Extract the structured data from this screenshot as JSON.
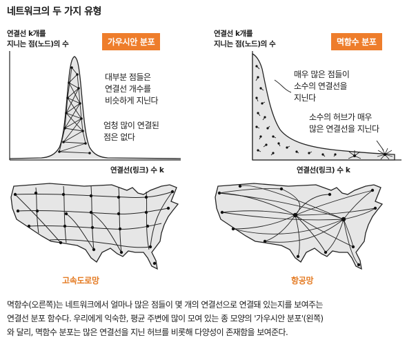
{
  "title": "네트워크의 두 가지 유형",
  "left_panel": {
    "y_axis_label_line1": "연결선 k개를",
    "y_axis_label_line2": "지니는 점(노드)의 수",
    "badge": "가우시안 분포",
    "x_axis_label": "연결선(링크) 수 k",
    "note1_line1": "대부분 점들은",
    "note1_line2": "연결선 개수를",
    "note1_line3": "비슷하게 지닌다",
    "note2_line1": "엄청 많이 연결된",
    "note2_line2": "점은 없다"
  },
  "right_panel": {
    "y_axis_label_line1": "연결선 k개를",
    "y_axis_label_line2": "지니는 점(노드)의 수",
    "badge": "멱함수 분포",
    "x_axis_label": "연결선(링크) 수 k",
    "note1_line1": "매우 많은 점들이",
    "note1_line2": "소수의 연결선을",
    "note1_line3": "지닌다",
    "note2_line1": "소수의 허브가 매우",
    "note2_line2": "많은 연결선을 지닌다"
  },
  "maps": {
    "left_label": "고속도로망",
    "right_label": "항공망"
  },
  "caption": {
    "line1": "멱함수(오른쪽)는 네트워크에서 얼마나 많은 점들이 몇 개의 연결선으로 연결돼 있는지를 보여주는",
    "line2": "연결선 분포 함수다. 우리에게 익숙한, 평균 주변에 많이 모여 있는 종 모양의 '가우시안 분포'(왼쪽)",
    "line3": "와 달리, 멱함수 분포는 많은 연결선을 지닌 허브를 비롯해 다양성이 존재함을 보여준다."
  },
  "colors": {
    "accent": "#ee7d2b",
    "map_label": "#e47a22",
    "fill": "#e6e6e6"
  }
}
